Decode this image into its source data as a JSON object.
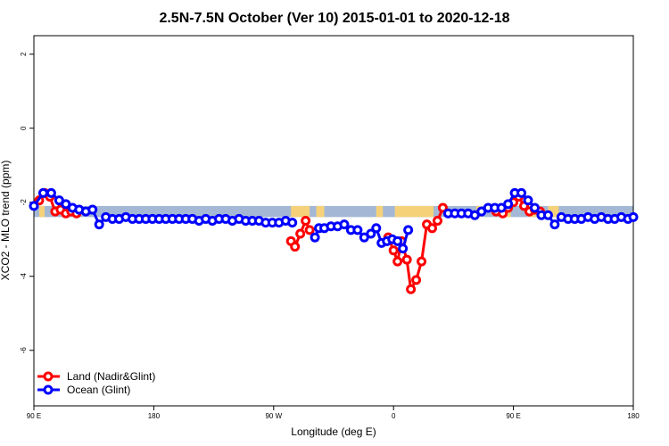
{
  "chart_data": {
    "type": "line",
    "title": "2.5N-7.5N October (Ver 10)   2015-01-01 to 2020-12-18",
    "xlabel": "Longitude (deg E)",
    "ylabel": "XCO2 - MLO trend (ppm)",
    "xlim": [
      90,
      540
    ],
    "ylim": [
      -7.5,
      2.5
    ],
    "x_ticks": [
      {
        "value": 90,
        "label": "90 E"
      },
      {
        "value": 180,
        "label": "180"
      },
      {
        "value": 270,
        "label": "90 W"
      },
      {
        "value": 360,
        "label": "0"
      },
      {
        "value": 450,
        "label": "90 E"
      },
      {
        "value": 540,
        "label": "180"
      }
    ],
    "y_ticks": [
      {
        "value": 2,
        "label": "2"
      },
      {
        "value": 0,
        "label": "0"
      },
      {
        "value": -2,
        "label": "-2"
      },
      {
        "value": -4,
        "label": "-4"
      },
      {
        "value": -6,
        "label": "-6"
      }
    ],
    "land_ocean_bar": {
      "y_top": -2.1,
      "y_bottom": -2.4,
      "ocean_color": "#a4b8d6",
      "land_color": "#f5d27a",
      "land_segments": [
        [
          94,
          98
        ],
        [
          120,
          125
        ],
        [
          283,
          297
        ],
        [
          302,
          308
        ],
        [
          347,
          352
        ],
        [
          361,
          390
        ],
        [
          422,
          426
        ],
        [
          440,
          448
        ],
        [
          462,
          470
        ],
        [
          476,
          484
        ]
      ]
    },
    "series": [
      {
        "name": "Land (Nadir&Glint)",
        "color": "#ff0000",
        "segments": [
          {
            "x": [
              94,
              98,
              102,
              106,
              110,
              114,
              118,
              122
            ],
            "y": [
              -1.95,
              -1.75,
              -1.85,
              -2.25,
              -2.2,
              -2.3,
              -2.25,
              -2.3
            ]
          },
          {
            "x": [
              283,
              286,
              290,
              294,
              297
            ],
            "y": [
              -3.05,
              -3.2,
              -2.85,
              -2.5,
              -2.75
            ]
          },
          {
            "x": [
              356,
              360,
              363,
              366,
              370,
              373,
              377,
              381,
              385,
              389,
              393,
              397
            ],
            "y": [
              -2.95,
              -3.3,
              -3.6,
              -3.05,
              -3.55,
              -4.35,
              -4.1,
              -3.6,
              -2.6,
              -2.7,
              -2.5,
              -2.15
            ]
          },
          {
            "x": [
              437,
              442,
              446,
              450,
              454,
              458,
              462,
              466,
              470
            ],
            "y": [
              -2.25,
              -2.3,
              -2.15,
              -2.0,
              -1.85,
              -2.1,
              -2.25,
              -2.2,
              -2.25
            ]
          }
        ]
      },
      {
        "name": "Ocean (Glint)",
        "color": "#0000ff",
        "segments": [
          {
            "x": [
              90,
              97,
              103,
              109,
              114,
              119,
              124,
              129,
              134,
              139,
              144,
              149,
              154,
              159,
              164,
              169,
              174,
              179,
              184,
              189,
              194,
              199,
              204,
              209,
              214,
              219,
              224,
              229,
              234,
              239,
              244,
              249,
              254,
              259,
              264,
              269,
              274,
              279,
              284
            ],
            "y": [
              -2.1,
              -1.75,
              -1.75,
              -1.95,
              -2.05,
              -2.15,
              -2.2,
              -2.25,
              -2.2,
              -2.6,
              -2.4,
              -2.45,
              -2.45,
              -2.4,
              -2.45,
              -2.45,
              -2.45,
              -2.45,
              -2.45,
              -2.45,
              -2.45,
              -2.45,
              -2.45,
              -2.45,
              -2.5,
              -2.45,
              -2.5,
              -2.45,
              -2.45,
              -2.5,
              -2.45,
              -2.5,
              -2.5,
              -2.5,
              -2.55,
              -2.55,
              -2.55,
              -2.5,
              -2.55
            ]
          },
          {
            "x": [
              301,
              304,
              308,
              313,
              318,
              323,
              328,
              333,
              338,
              343,
              347,
              351,
              355,
              359,
              363,
              367,
              371
            ],
            "y": [
              -2.95,
              -2.7,
              -2.7,
              -2.65,
              -2.65,
              -2.6,
              -2.75,
              -2.75,
              -2.95,
              -2.85,
              -2.7,
              -3.1,
              -3.05,
              -3.0,
              -3.05,
              -3.25,
              -2.75
            ]
          },
          {
            "x": [
              401,
              406,
              411,
              416,
              421,
              426,
              431,
              436,
              441,
              446,
              451,
              456,
              461,
              466,
              471,
              476,
              481,
              486,
              491,
              496,
              501,
              506,
              511,
              516,
              521,
              526,
              531,
              536,
              540
            ],
            "y": [
              -2.3,
              -2.3,
              -2.3,
              -2.3,
              -2.35,
              -2.25,
              -2.15,
              -2.15,
              -2.15,
              -2.05,
              -1.75,
              -1.75,
              -1.95,
              -2.15,
              -2.35,
              -2.35,
              -2.6,
              -2.4,
              -2.45,
              -2.45,
              -2.45,
              -2.4,
              -2.45,
              -2.4,
              -2.45,
              -2.45,
              -2.4,
              -2.45,
              -2.4
            ]
          }
        ]
      }
    ],
    "legend_position": "bottom-left",
    "grid": false
  }
}
